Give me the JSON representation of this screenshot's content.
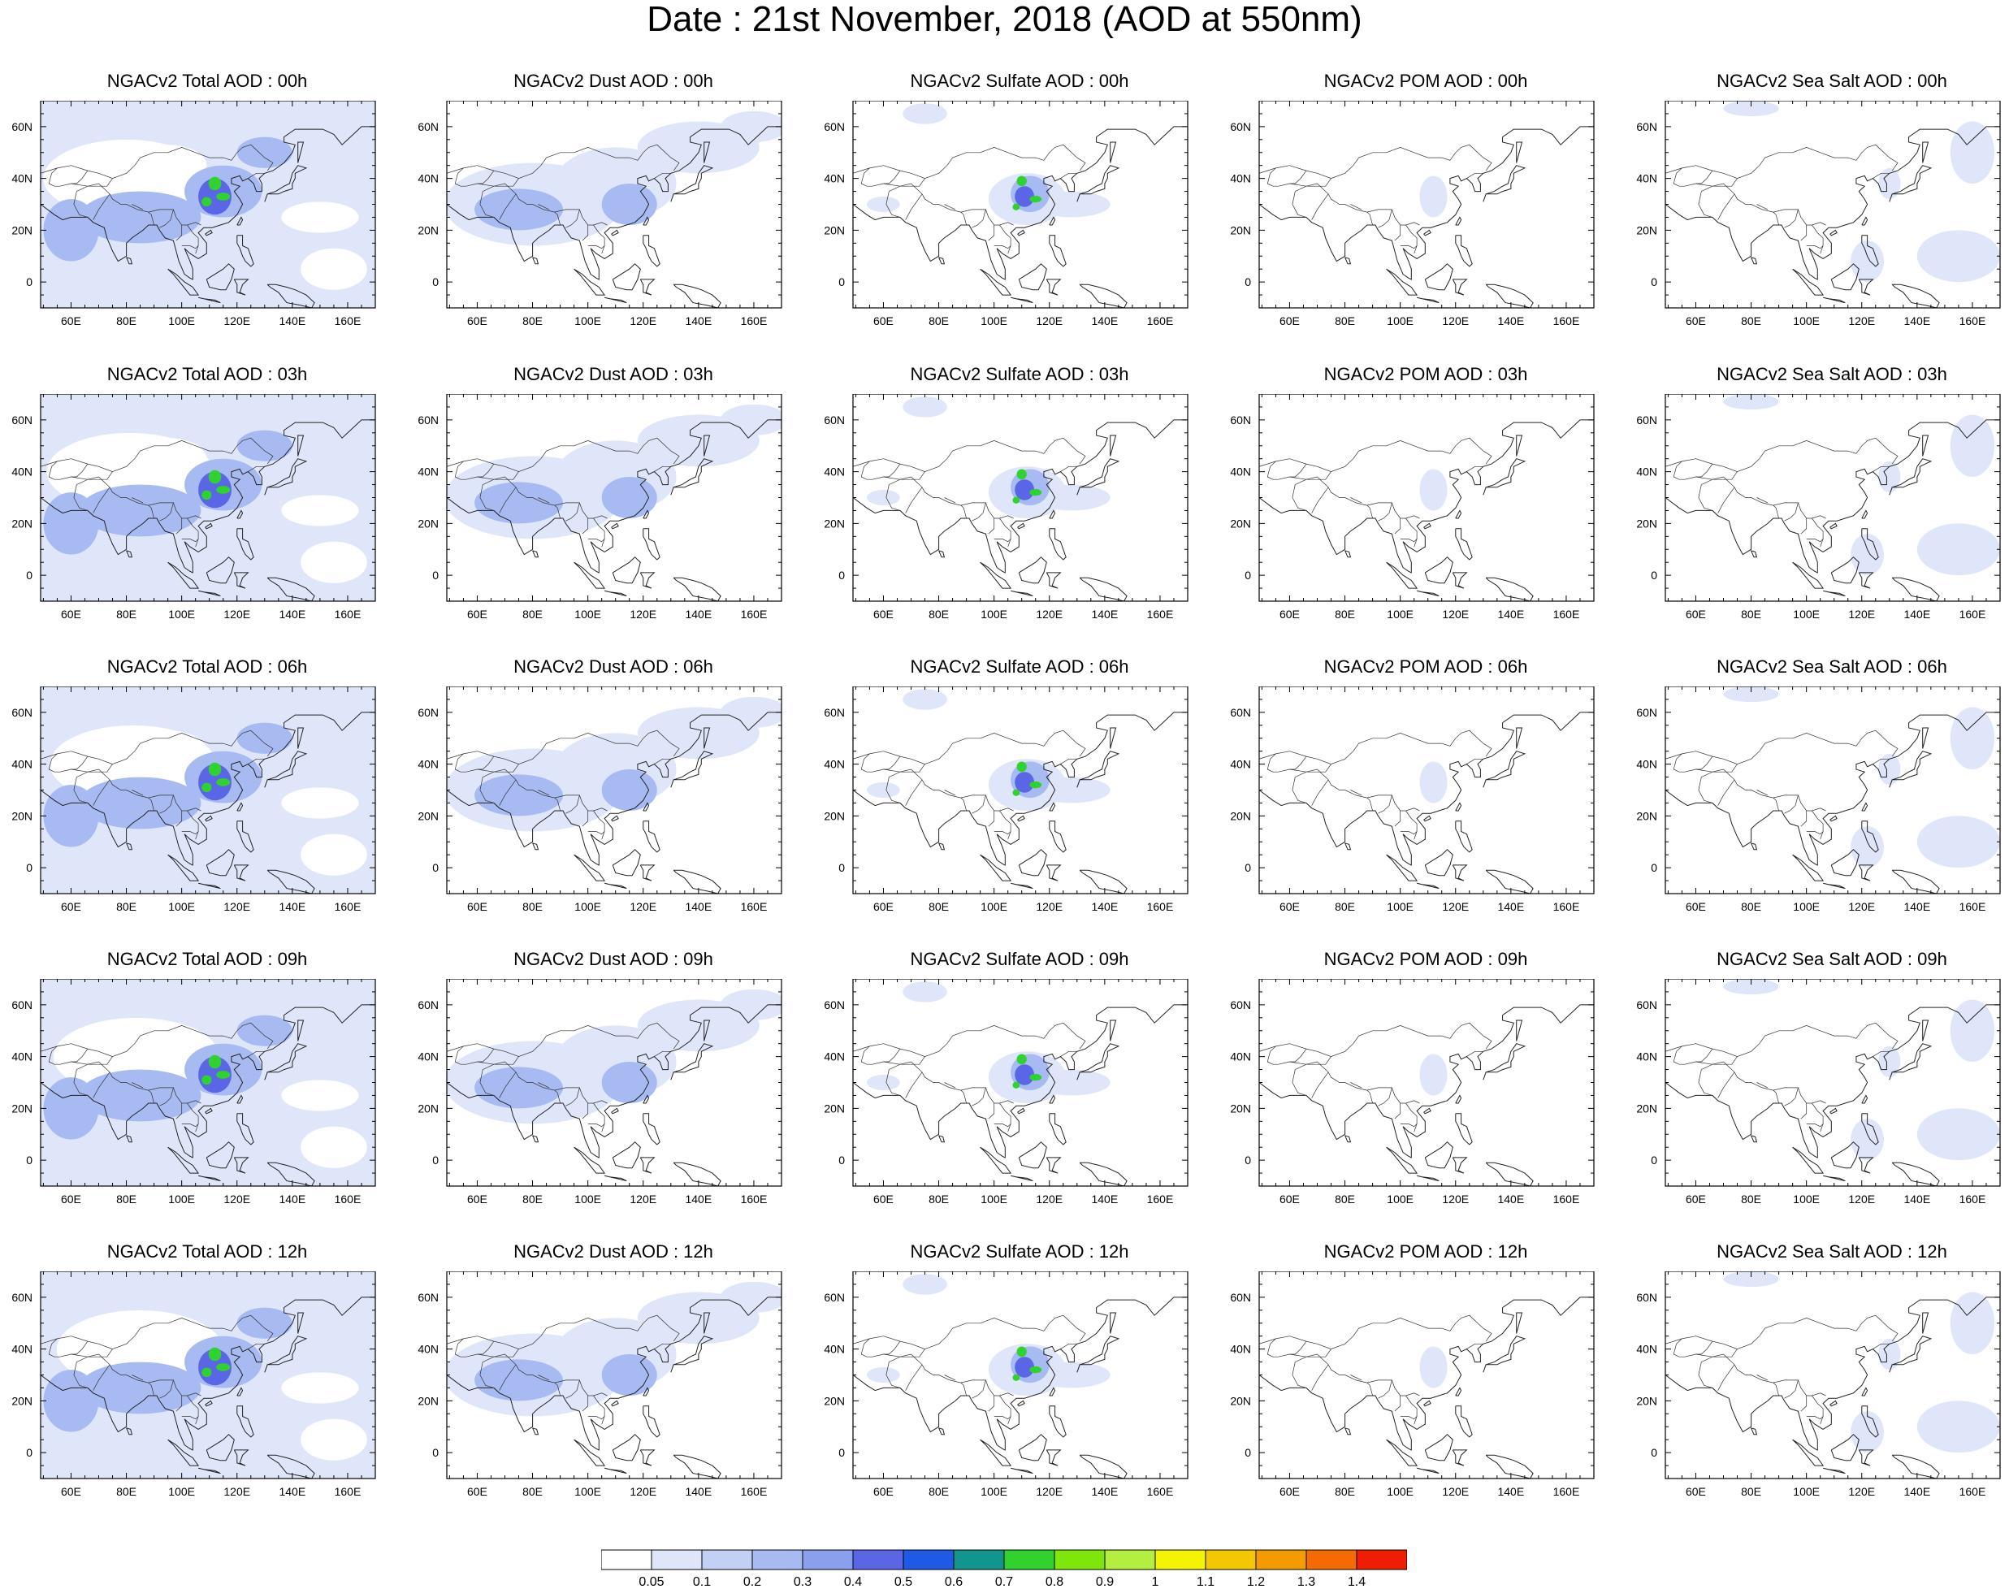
{
  "title": "Date : 21st November, 2018 (AOD at 550nm)",
  "axes": {
    "lon_labels": [
      "60E",
      "80E",
      "100E",
      "120E",
      "140E",
      "160E"
    ],
    "lon_values": [
      60,
      80,
      100,
      120,
      140,
      160
    ],
    "lat_labels": [
      "60N",
      "40N",
      "20N",
      "0"
    ],
    "lat_values": [
      60,
      40,
      20,
      0
    ],
    "lon_range": [
      49,
      170
    ],
    "lat_range": [
      -10,
      70
    ]
  },
  "columns": [
    "Total",
    "Dust",
    "Sulfate",
    "POM",
    "Sea Salt"
  ],
  "panels": [
    [
      {
        "title": "NGACv2 Total AOD : 00h"
      },
      {
        "title": "NGACv2 Dust AOD : 00h"
      },
      {
        "title": "NGACv2 Sulfate AOD : 00h"
      },
      {
        "title": "NGACv2 POM AOD : 00h"
      },
      {
        "title": "NGACv2 Sea Salt AOD : 00h"
      }
    ],
    [
      {
        "title": "NGACv2 Total AOD : 03h"
      },
      {
        "title": "NGACv2 Dust AOD : 03h"
      },
      {
        "title": "NGACv2 Sulfate AOD : 03h"
      },
      {
        "title": "NGACv2 POM AOD : 03h"
      },
      {
        "title": "NGACv2 Sea Salt AOD : 03h"
      }
    ],
    [
      {
        "title": "NGACv2 Total AOD : 06h"
      },
      {
        "title": "NGACv2 Dust AOD : 06h"
      },
      {
        "title": "NGACv2 Sulfate AOD : 06h"
      },
      {
        "title": "NGACv2 POM AOD : 06h"
      },
      {
        "title": "NGACv2 Sea Salt AOD : 06h"
      }
    ],
    [
      {
        "title": "NGACv2 Total AOD : 09h"
      },
      {
        "title": "NGACv2 Dust AOD : 09h"
      },
      {
        "title": "NGACv2 Sulfate AOD : 09h"
      },
      {
        "title": "NGACv2 POM AOD : 09h"
      },
      {
        "title": "NGACv2 Sea Salt  AOD : 09h"
      }
    ],
    [
      {
        "title": "NGACv2 Total AOD  : 12h"
      },
      {
        "title": "NGACv2 Dust AOD : 12h"
      },
      {
        "title": "NGACv2 Sulfate AOD : 12h"
      },
      {
        "title": "NGACv2 POM  AOD : 12h"
      },
      {
        "title": "NGACv2 Sea Salt  AOD : 12h"
      }
    ]
  ],
  "colorbar": {
    "labels": [
      "0.05",
      "0.1",
      "0.2",
      "0.3",
      "0.4",
      "0.5",
      "0.6",
      "0.7",
      "0.8",
      "0.9",
      "1",
      "1.1",
      "1.2",
      "1.3",
      "1.4"
    ],
    "colors": [
      "#ffffff",
      "#dfe6fa",
      "#c3d0f6",
      "#a8baf2",
      "#8aa0ee",
      "#5a66e6",
      "#1f5ae6",
      "#12958c",
      "#2fd22f",
      "#7ee60a",
      "#b4ee3e",
      "#f4f400",
      "#f4c800",
      "#f49b00",
      "#f46c00",
      "#f01e00"
    ]
  },
  "colors": {
    "low": "#dfe6fa",
    "mid": "#a8baf2",
    "high": "#5a66e6",
    "hot": "#2fd22f"
  }
}
